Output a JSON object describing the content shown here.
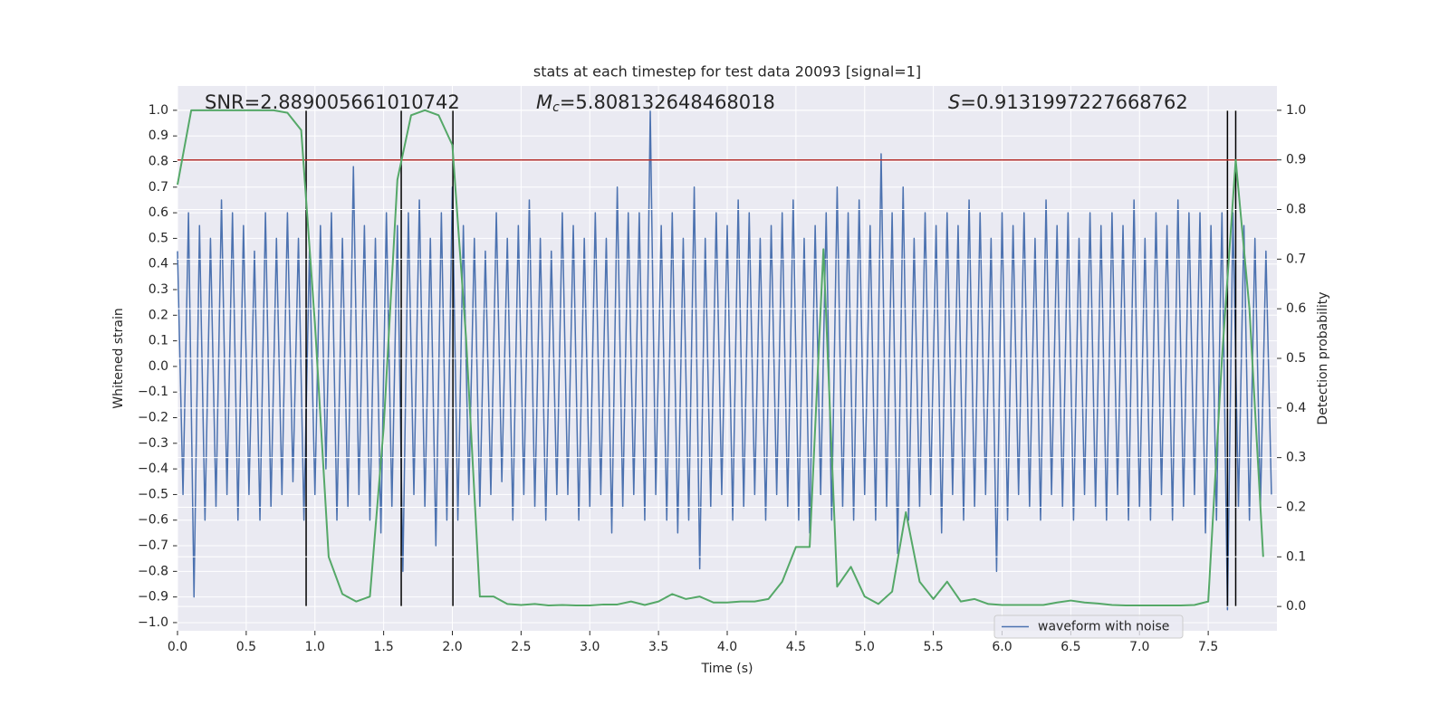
{
  "chart_data": {
    "type": "line",
    "title": "stats at each timestep for test data 20093 [signal=1]",
    "x_label": "Time (s)",
    "y_label": "Whitened strain",
    "y2_label": "Detection probability",
    "annotations": [
      {
        "text": "SNR=2.889005661010742"
      },
      {
        "symbol": "M",
        "subscript": "c",
        "text": "=5.808132648468018"
      },
      {
        "symbol": "S",
        "text": "=0.9131997227668762"
      }
    ],
    "background": "#eaeaf2",
    "grid": true,
    "legend": "lower right",
    "xlim": [
      0,
      8.0
    ],
    "ylim": [
      -1.032,
      1.095
    ],
    "y2lim": [
      -0.049,
      1.049
    ],
    "xticks": [
      {
        "value": 0,
        "label": "0.0"
      },
      {
        "value": 0.5,
        "label": "0.5"
      },
      {
        "value": 1,
        "label": "1.0"
      },
      {
        "value": 1.5,
        "label": "1.5"
      },
      {
        "value": 2,
        "label": "2.0"
      },
      {
        "value": 2.5,
        "label": "2.5"
      },
      {
        "value": 3,
        "label": "3.0"
      },
      {
        "value": 3.5,
        "label": "3.5"
      },
      {
        "value": 4,
        "label": "4.0"
      },
      {
        "value": 4.5,
        "label": "4.5"
      },
      {
        "value": 5,
        "label": "5.0"
      },
      {
        "value": 5.5,
        "label": "5.5"
      },
      {
        "value": 6,
        "label": "6.0"
      },
      {
        "value": 6.5,
        "label": "6.5"
      },
      {
        "value": 7,
        "label": "7.0"
      },
      {
        "value": 7.5,
        "label": "7.5"
      }
    ],
    "yticks": [
      {
        "value": 1,
        "label": "1.0"
      },
      {
        "value": 0.9,
        "label": "0.9"
      },
      {
        "value": 0.8,
        "label": "0.8"
      },
      {
        "value": 0.7,
        "label": "0.7"
      },
      {
        "value": 0.6,
        "label": "0.6"
      },
      {
        "value": 0.5,
        "label": "0.5"
      },
      {
        "value": 0.4,
        "label": "0.4"
      },
      {
        "value": 0.3,
        "label": "0.3"
      },
      {
        "value": 0.2,
        "label": "0.2"
      },
      {
        "value": 0.1,
        "label": "0.1"
      },
      {
        "value": 0,
        "label": "0.0"
      },
      {
        "value": -0.1,
        "label": "−0.1"
      },
      {
        "value": -0.2,
        "label": "−0.2"
      },
      {
        "value": -0.3,
        "label": "−0.3"
      },
      {
        "value": -0.4,
        "label": "−0.4"
      },
      {
        "value": -0.5,
        "label": "−0.5"
      },
      {
        "value": -0.6,
        "label": "−0.6"
      },
      {
        "value": -0.7,
        "label": "−0.7"
      },
      {
        "value": -0.8,
        "label": "−0.8"
      },
      {
        "value": -0.9,
        "label": "−0.9"
      },
      {
        "value": -1,
        "label": "−1.0"
      }
    ],
    "y2ticks": [
      {
        "value": 0,
        "label": "0.0"
      },
      {
        "value": 0.1,
        "label": "0.1"
      },
      {
        "value": 0.2,
        "label": "0.2"
      },
      {
        "value": 0.3,
        "label": "0.3"
      },
      {
        "value": 0.4,
        "label": "0.4"
      },
      {
        "value": 0.5,
        "label": "0.5"
      },
      {
        "value": 0.6,
        "label": "0.6"
      },
      {
        "value": 0.7,
        "label": "0.7"
      },
      {
        "value": 0.8,
        "label": "0.8"
      },
      {
        "value": 0.9,
        "label": "0.9"
      },
      {
        "value": 1,
        "label": "1.0"
      }
    ],
    "series": [
      {
        "name": "waveform with noise",
        "color": "#4c72b0",
        "axis": "y",
        "x": [
          0,
          0.04,
          0.08,
          0.12,
          0.16,
          0.2,
          0.24,
          0.28,
          0.32,
          0.36,
          0.4,
          0.44,
          0.48,
          0.52,
          0.56,
          0.6,
          0.64,
          0.68,
          0.72,
          0.76,
          0.8,
          0.84,
          0.88,
          0.92,
          0.96,
          1,
          1.04,
          1.08,
          1.12,
          1.16,
          1.2,
          1.24,
          1.28,
          1.32,
          1.36,
          1.4,
          1.44,
          1.48,
          1.52,
          1.56,
          1.6,
          1.64,
          1.68,
          1.72,
          1.76,
          1.8,
          1.84,
          1.88,
          1.92,
          1.96,
          2,
          2.04,
          2.08,
          2.12,
          2.16,
          2.2,
          2.24,
          2.28,
          2.32,
          2.36,
          2.4,
          2.44,
          2.48,
          2.52,
          2.56,
          2.6,
          2.64,
          2.68,
          2.72,
          2.76,
          2.8,
          2.84,
          2.88,
          2.92,
          2.96,
          3,
          3.04,
          3.08,
          3.12,
          3.16,
          3.2,
          3.24,
          3.28,
          3.32,
          3.36,
          3.4,
          3.44,
          3.48,
          3.52,
          3.56,
          3.6,
          3.64,
          3.68,
          3.72,
          3.76,
          3.8,
          3.84,
          3.88,
          3.92,
          3.96,
          4,
          4.04,
          4.08,
          4.12,
          4.16,
          4.2,
          4.24,
          4.28,
          4.32,
          4.36,
          4.4,
          4.44,
          4.48,
          4.52,
          4.56,
          4.6,
          4.64,
          4.68,
          4.72,
          4.76,
          4.8,
          4.84,
          4.88,
          4.92,
          4.96,
          5,
          5.04,
          5.08,
          5.12,
          5.16,
          5.2,
          5.24,
          5.28,
          5.32,
          5.36,
          5.4,
          5.44,
          5.48,
          5.52,
          5.56,
          5.6,
          5.64,
          5.68,
          5.72,
          5.76,
          5.8,
          5.84,
          5.88,
          5.92,
          5.96,
          6,
          6.04,
          6.08,
          6.12,
          6.16,
          6.2,
          6.24,
          6.28,
          6.32,
          6.36,
          6.4,
          6.44,
          6.48,
          6.52,
          6.56,
          6.6,
          6.64,
          6.68,
          6.72,
          6.76,
          6.8,
          6.84,
          6.88,
          6.92,
          6.96,
          7,
          7.04,
          7.08,
          7.12,
          7.16,
          7.2,
          7.24,
          7.28,
          7.32,
          7.36,
          7.4,
          7.44,
          7.48,
          7.52,
          7.56,
          7.6,
          7.64,
          7.68,
          7.72,
          7.76,
          7.8,
          7.84,
          7.88,
          7.92,
          7.96
        ],
        "values": [
          0.45,
          -0.5,
          0.6,
          -0.9,
          0.55,
          -0.6,
          0.5,
          -0.55,
          0.65,
          -0.5,
          0.6,
          -0.6,
          0.55,
          -0.5,
          0.45,
          -0.6,
          0.6,
          -0.55,
          0.5,
          -0.5,
          0.6,
          -0.45,
          0.5,
          -0.6,
          0.45,
          -0.5,
          0.55,
          -0.4,
          0.6,
          -0.6,
          0.5,
          -0.55,
          0.78,
          -0.5,
          0.55,
          -0.6,
          0.5,
          -0.65,
          0.6,
          -0.55,
          0.55,
          -0.8,
          0.6,
          -0.5,
          0.65,
          -0.55,
          0.5,
          -0.7,
          0.6,
          -0.6,
          0.7,
          -0.6,
          0.55,
          -0.5,
          0.5,
          -0.55,
          0.45,
          -0.5,
          0.6,
          -0.45,
          0.5,
          -0.6,
          0.55,
          -0.5,
          0.65,
          -0.55,
          0.5,
          -0.6,
          0.45,
          -0.5,
          0.6,
          -0.5,
          0.55,
          -0.6,
          0.5,
          -0.55,
          0.6,
          -0.5,
          0.5,
          -0.65,
          0.7,
          -0.55,
          0.6,
          -0.5,
          0.6,
          -0.6,
          1.0,
          -0.5,
          0.55,
          -0.6,
          0.6,
          -0.65,
          0.5,
          -0.6,
          0.7,
          -0.79,
          0.5,
          -0.55,
          0.6,
          -0.5,
          0.55,
          -0.6,
          0.65,
          -0.55,
          0.6,
          -0.5,
          0.5,
          -0.6,
          0.55,
          -0.5,
          0.6,
          -0.55,
          0.65,
          -0.6,
          0.5,
          -0.65,
          0.55,
          -0.5,
          0.6,
          -0.6,
          0.7,
          -0.55,
          0.6,
          -0.6,
          0.65,
          -0.5,
          0.55,
          -0.6,
          0.83,
          -0.55,
          0.6,
          -0.73,
          0.7,
          -0.6,
          0.5,
          -0.55,
          0.6,
          -0.5,
          0.55,
          -0.65,
          0.6,
          -0.5,
          0.55,
          -0.6,
          0.65,
          -0.55,
          0.6,
          -0.5,
          0.5,
          -0.8,
          0.6,
          -0.6,
          0.55,
          -0.5,
          0.6,
          -0.55,
          0.5,
          -0.6,
          0.65,
          -0.5,
          0.55,
          -0.55,
          0.6,
          -0.6,
          0.5,
          -0.5,
          0.6,
          -0.55,
          0.55,
          -0.6,
          0.6,
          -0.5,
          0.55,
          -0.6,
          0.65,
          -0.55,
          0.5,
          -0.6,
          0.6,
          -0.5,
          0.55,
          -0.6,
          0.65,
          -0.55,
          0.6,
          -0.5,
          0.6,
          -0.65,
          0.55,
          -0.6,
          0.6,
          -0.95,
          0.6,
          -0.55,
          0.55,
          -0.6,
          0.5,
          -0.55,
          0.45,
          -0.5
        ]
      },
      {
        "color": "#55a868",
        "axis": "y2",
        "x": [
          0,
          0.1,
          0.2,
          0.3,
          0.4,
          0.5,
          0.6,
          0.7,
          0.8,
          0.9,
          1,
          1.1,
          1.2,
          1.3,
          1.4,
          1.5,
          1.6,
          1.7,
          1.8,
          1.9,
          2,
          2.1,
          2.2,
          2.3,
          2.4,
          2.5,
          2.6,
          2.7,
          2.8,
          2.9,
          3,
          3.1,
          3.2,
          3.3,
          3.4,
          3.5,
          3.6,
          3.7,
          3.8,
          3.9,
          4,
          4.1,
          4.2,
          4.3,
          4.4,
          4.5,
          4.6,
          4.7,
          4.8,
          4.9,
          5,
          5.1,
          5.2,
          5.3,
          5.4,
          5.5,
          5.6,
          5.7,
          5.8,
          5.9,
          6,
          6.1,
          6.2,
          6.3,
          6.4,
          6.5,
          6.6,
          6.7,
          6.8,
          6.9,
          7,
          7.1,
          7.2,
          7.3,
          7.4,
          7.5,
          7.6,
          7.7,
          7.8,
          7.9
        ],
        "values": [
          0.85,
          1.0,
          1.0,
          1.0,
          1.0,
          1.0,
          1.0,
          1.0,
          0.995,
          0.96,
          0.57,
          0.1,
          0.025,
          0.01,
          0.02,
          0.36,
          0.86,
          0.99,
          1.0,
          0.99,
          0.93,
          0.54,
          0.02,
          0.02,
          0.005,
          0.003,
          0.005,
          0.002,
          0.003,
          0.002,
          0.002,
          0.004,
          0.004,
          0.01,
          0.003,
          0.01,
          0.025,
          0.015,
          0.02,
          0.008,
          0.008,
          0.01,
          0.01,
          0.015,
          0.05,
          0.12,
          0.12,
          0.72,
          0.04,
          0.08,
          0.02,
          0.005,
          0.03,
          0.19,
          0.05,
          0.015,
          0.05,
          0.01,
          0.015,
          0.005,
          0.003,
          0.003,
          0.003,
          0.003,
          0.008,
          0.012,
          0.008,
          0.006,
          0.003,
          0.002,
          0.002,
          0.002,
          0.002,
          0.002,
          0.003,
          0.01,
          0.5,
          0.9,
          0.6,
          0.1
        ]
      }
    ],
    "threshold": {
      "y": 0.9,
      "axis": "y2",
      "color": "#b8332e"
    },
    "vlines": {
      "x": [
        0.936,
        1.628,
        2.004,
        7.64,
        7.7
      ],
      "ymin": 0,
      "ymax": 1,
      "axis": "y2",
      "color": "#000000"
    }
  }
}
